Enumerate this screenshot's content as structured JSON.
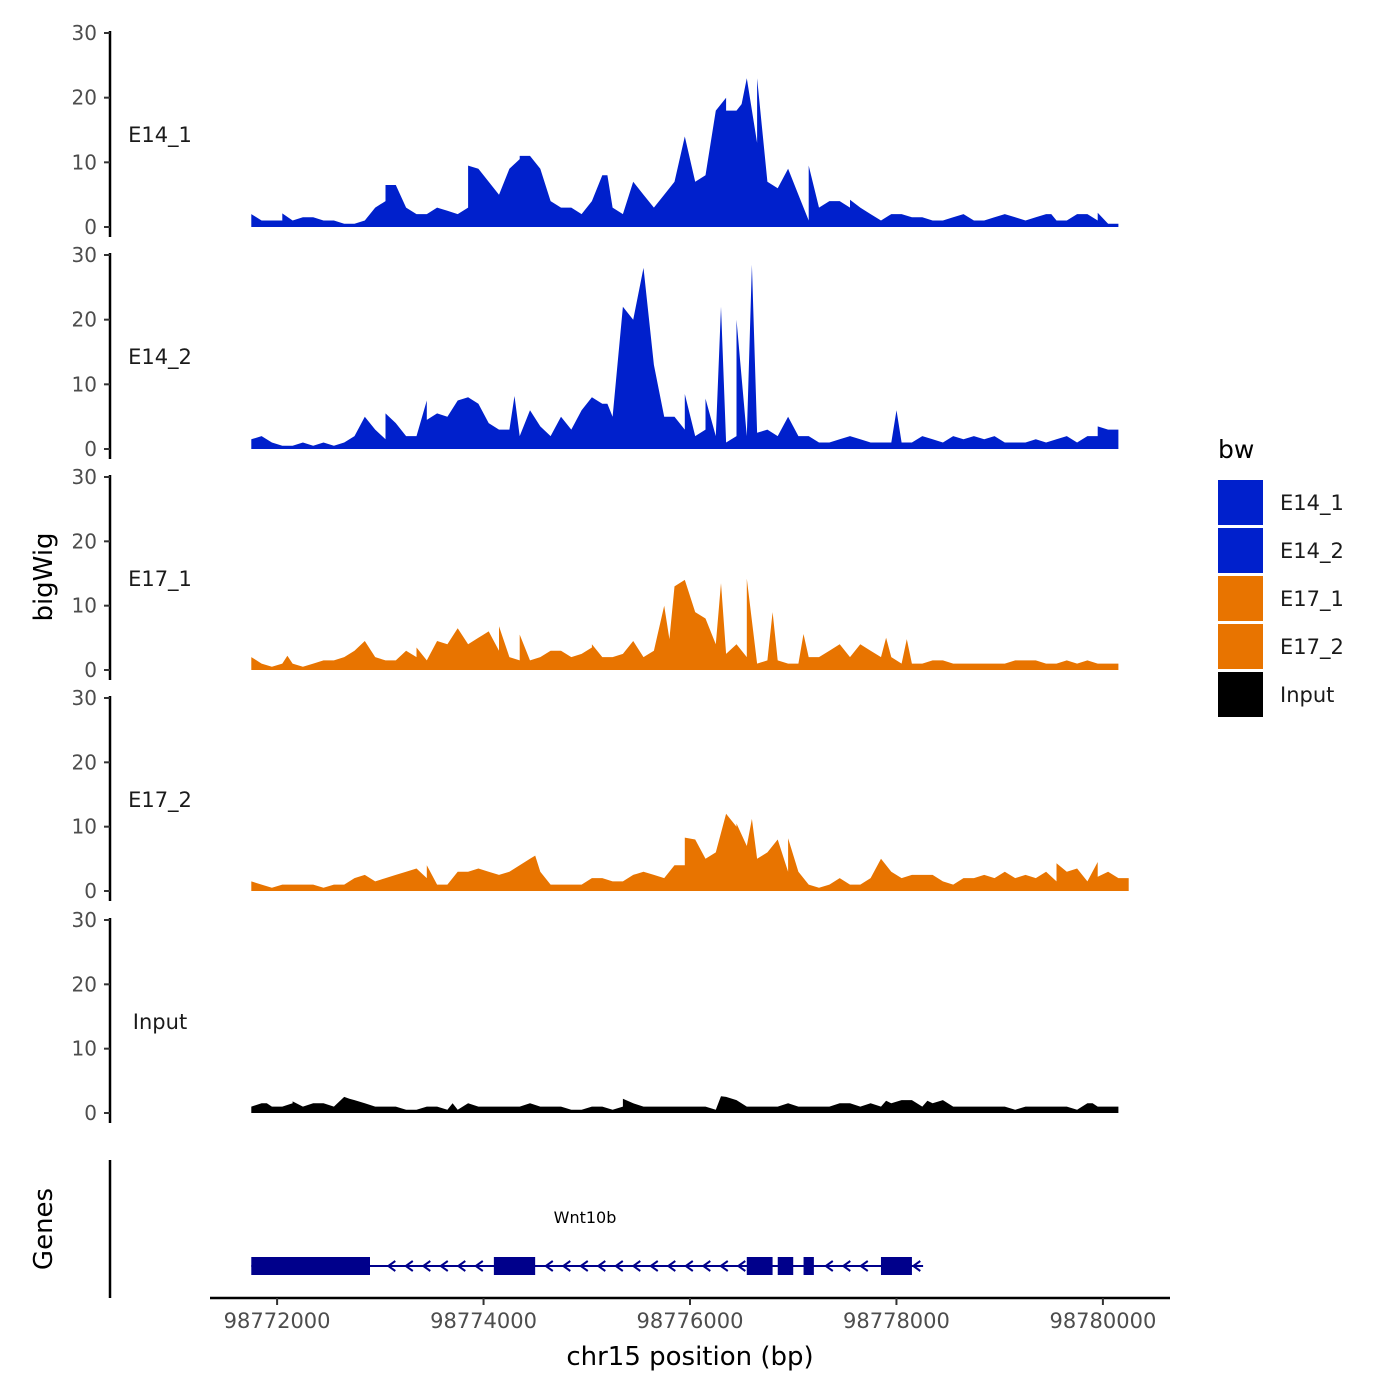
{
  "chart_data": {
    "type": "area",
    "title": "",
    "xlabel": "chr15 position (bp)",
    "ylabel": "bigWig",
    "genes_label": "Genes",
    "xlim": [
      98771350,
      98780650
    ],
    "ylim": [
      0,
      30
    ],
    "x_ticks": [
      {
        "value": 98772000,
        "label": "98772000"
      },
      {
        "value": 98774000,
        "label": "98774000"
      },
      {
        "value": 98776000,
        "label": "98776000"
      },
      {
        "value": 98778000,
        "label": "98778000"
      },
      {
        "value": 98780000,
        "label": "98780000"
      }
    ],
    "y_ticks": [
      {
        "value": 0,
        "label": "0"
      },
      {
        "value": 10,
        "label": "10"
      },
      {
        "value": 20,
        "label": "20"
      },
      {
        "value": 30,
        "label": "30"
      }
    ],
    "x_start": 98771750,
    "x_step": 100,
    "legend": {
      "title": "bw",
      "items": [
        {
          "label": "E14_1",
          "color": "#0020CC"
        },
        {
          "label": "E14_2",
          "color": "#0020CC"
        },
        {
          "label": "E17_1",
          "color": "#E87400"
        },
        {
          "label": "E17_2",
          "color": "#E87400"
        },
        {
          "label": "Input",
          "color": "#000000"
        }
      ]
    },
    "series": [
      {
        "name": "E14_1",
        "color": "#0020CC",
        "values": [
          2,
          1,
          1,
          1,
          1,
          1.5,
          1.5,
          1,
          1,
          0.5,
          0.5,
          1,
          3,
          4,
          6.5,
          3,
          2,
          2,
          3,
          2.5,
          2,
          3,
          9,
          7,
          5,
          9,
          10.5,
          11,
          9,
          4,
          3,
          3,
          2,
          4,
          8,
          3,
          2,
          7,
          5,
          3,
          5,
          7,
          14,
          7,
          8,
          18,
          20,
          18,
          23,
          13,
          7,
          6,
          9,
          5,
          1,
          3,
          4,
          4,
          3,
          3,
          2,
          1,
          2,
          2,
          1.5,
          1.5,
          1,
          1,
          1.5,
          2,
          1,
          1,
          1.5,
          2,
          1.5,
          1,
          1.5,
          2,
          1,
          1,
          2,
          2,
          1,
          0.5,
          0.5
        ],
        "peaks": [
          [
            98772050,
            2.1
          ],
          [
            98773050,
            6.5
          ],
          [
            98773850,
            9.5
          ],
          [
            98774350,
            11
          ],
          [
            98775200,
            8
          ],
          [
            98775950,
            14
          ],
          [
            98776350,
            18
          ],
          [
            98776500,
            19
          ],
          [
            98776650,
            23
          ],
          [
            98777150,
            9.5
          ],
          [
            98777550,
            4.2
          ],
          [
            98779500,
            2
          ],
          [
            98779950,
            2.2
          ]
        ]
      },
      {
        "name": "E14_2",
        "color": "#0020CC",
        "values": [
          1.5,
          2,
          1,
          0.5,
          0.5,
          1,
          0.5,
          1,
          0.5,
          1,
          2,
          5,
          3,
          1.5,
          4,
          2,
          2,
          7.5,
          5.5,
          5,
          7.5,
          8,
          7,
          4,
          3,
          3,
          2,
          6,
          3.5,
          2,
          5,
          3,
          6,
          8,
          7,
          5,
          22,
          20,
          28,
          13,
          5,
          5,
          3,
          2,
          3,
          2,
          1,
          2,
          2,
          2.5,
          3,
          2,
          5,
          2,
          2,
          1,
          1,
          1.5,
          2,
          1.5,
          1,
          1,
          1,
          1,
          1,
          2,
          1.5,
          1,
          2,
          1.5,
          2,
          1.5,
          2,
          1,
          1,
          1,
          1.5,
          1,
          1.5,
          2,
          1,
          2,
          2,
          3,
          3
        ],
        "peaks": [
          [
            98773050,
            5.5
          ],
          [
            98773450,
            4.5
          ],
          [
            98773850,
            8
          ],
          [
            98774300,
            8.2
          ],
          [
            98775200,
            7
          ],
          [
            98775950,
            8.5
          ],
          [
            98776150,
            7.8
          ],
          [
            98776300,
            22
          ],
          [
            98776450,
            20
          ],
          [
            98776600,
            28.5
          ],
          [
            98776950,
            5
          ],
          [
            98778000,
            6
          ],
          [
            98779950,
            3.5
          ]
        ]
      },
      {
        "name": "E17_1",
        "color": "#E87400",
        "values": [
          2,
          1,
          0.5,
          1,
          1,
          0.5,
          1,
          1.5,
          1.5,
          2,
          3,
          4.5,
          2,
          1.5,
          1.5,
          3,
          2,
          1.5,
          4.5,
          4,
          6.5,
          4,
          5,
          6,
          3,
          2,
          1.5,
          1.5,
          2,
          3,
          3,
          2,
          2.5,
          3.5,
          2,
          2,
          2.5,
          4.5,
          2,
          3,
          10,
          13,
          14,
          9,
          8,
          4,
          2.5,
          4,
          2,
          1,
          1.5,
          1.5,
          1,
          1,
          2,
          2,
          3,
          4,
          2,
          4,
          3,
          2,
          2,
          1,
          1,
          1,
          1.5,
          1.5,
          1,
          1,
          1,
          1,
          1,
          1,
          1.5,
          1.5,
          1.5,
          1,
          1,
          1.5,
          1,
          1.5,
          1,
          1,
          1
        ],
        "peaks": [
          [
            98772100,
            2.2
          ],
          [
            98773350,
            3.5
          ],
          [
            98774150,
            6.8
          ],
          [
            98774350,
            5.5
          ],
          [
            98775050,
            4
          ],
          [
            98775800,
            4.8
          ],
          [
            98776300,
            13.5
          ],
          [
            98776550,
            14.2
          ],
          [
            98776800,
            9
          ],
          [
            98777100,
            5.6
          ],
          [
            98777900,
            5
          ],
          [
            98778100,
            4.8
          ]
        ]
      },
      {
        "name": "E17_2",
        "color": "#E87400",
        "values": [
          1.5,
          1,
          0.5,
          1,
          1,
          1,
          1,
          0.5,
          1,
          1,
          2,
          2.5,
          1.5,
          2,
          2.5,
          3,
          3.5,
          2,
          1,
          1,
          3,
          3,
          3.5,
          3,
          2.5,
          3,
          4,
          5,
          3,
          1,
          1,
          1,
          1,
          2,
          2,
          1.5,
          1.5,
          2.5,
          3,
          2.5,
          2,
          4,
          4,
          8,
          5,
          6,
          12,
          10,
          7,
          5,
          6,
          8,
          3,
          3,
          1,
          0.5,
          1,
          2,
          1,
          1,
          2,
          5,
          3,
          2,
          2.5,
          2.5,
          2.5,
          1.5,
          1,
          2,
          2,
          2.5,
          2,
          3,
          2,
          2.5,
          2,
          3,
          1.5,
          3,
          3.5,
          1.5,
          4.5,
          3,
          2,
          2
        ],
        "peaks": [
          [
            98773450,
            4
          ],
          [
            98774500,
            5.5
          ],
          [
            98775950,
            8.3
          ],
          [
            98776350,
            12
          ],
          [
            98776450,
            10.5
          ],
          [
            98776600,
            11.2
          ],
          [
            98776950,
            8.2
          ],
          [
            98777850,
            5
          ],
          [
            98779550,
            4.3
          ],
          [
            98779950,
            2.2
          ]
        ]
      },
      {
        "name": "Input",
        "color": "#000000",
        "values": [
          1,
          1.5,
          1,
          1,
          1.5,
          1,
          1.5,
          1.5,
          1,
          2.5,
          2,
          1.5,
          1,
          1,
          1,
          0.5,
          0.5,
          1,
          1,
          0.5,
          0.5,
          1.5,
          1,
          1,
          1,
          1,
          1,
          1.5,
          1,
          1,
          1,
          0.5,
          0.5,
          1,
          1,
          0.5,
          1,
          1.5,
          1,
          1,
          1,
          1,
          1,
          1,
          1,
          0.5,
          2.5,
          2,
          1,
          1,
          1,
          1,
          1.5,
          1,
          1,
          1,
          1,
          1.5,
          1.5,
          1,
          1.5,
          1,
          1.5,
          2,
          2,
          1,
          1.5,
          2,
          1,
          1,
          1,
          1,
          1,
          1,
          0.5,
          1,
          1,
          1,
          1,
          1,
          0.5,
          1.5,
          1,
          1,
          1
        ],
        "peaks": [
          [
            98771900,
            1.5
          ],
          [
            98772150,
            1.8
          ],
          [
            98772700,
            2.2
          ],
          [
            98773700,
            1.5
          ],
          [
            98775350,
            2.2
          ],
          [
            98776300,
            2.6
          ],
          [
            98777900,
            1.9
          ],
          [
            98778300,
            1.9
          ],
          [
            98779900,
            1.5
          ]
        ]
      }
    ],
    "gene": {
      "name": "Wnt10b",
      "start": 98771750,
      "end": 98778200,
      "strand": "-",
      "exons": [
        [
          98771750,
          98772900
        ],
        [
          98774100,
          98774500
        ],
        [
          98776550,
          98776800
        ],
        [
          98776850,
          98777000
        ],
        [
          98777100,
          98777200
        ],
        [
          98777850,
          98778150
        ]
      ]
    }
  }
}
